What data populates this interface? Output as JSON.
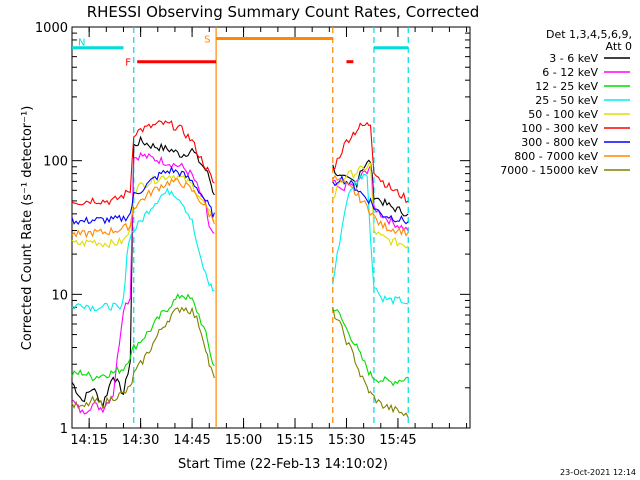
{
  "chart_data": {
    "type": "line",
    "title": "RHESSI Observing Summary Count Rates, Corrected",
    "xlabel": "Start Time (22-Feb-13 14:10:02)",
    "ylabel": "Corrected Count Rate (s⁻¹ detector⁻¹)",
    "x_range_min": [
      10,
      126
    ],
    "y_range": [
      1,
      1000
    ],
    "y_scale": "log",
    "x_ticks": [
      {
        "min": 15,
        "label": "14:15"
      },
      {
        "min": 30,
        "label": "14:30"
      },
      {
        "min": 45,
        "label": "14:45"
      },
      {
        "min": 60,
        "label": "15:00"
      },
      {
        "min": 75,
        "label": "15:15"
      },
      {
        "min": 90,
        "label": "15:30"
      },
      {
        "min": 105,
        "label": "15:45"
      }
    ],
    "y_ticks": [
      {
        "value": 1,
        "label": "1"
      },
      {
        "value": 10,
        "label": "10"
      },
      {
        "value": 100,
        "label": "100"
      },
      {
        "value": 1000,
        "label": "1000"
      }
    ],
    "legend_header": [
      "Det 1,3,4,5,6,9,",
      "Att 0"
    ],
    "legend_placement": "right",
    "timestamp": "23-Oct-2021 12:14",
    "gaps": [
      [
        52,
        86
      ]
    ],
    "series": [
      {
        "name": "3 - 6 keV",
        "color": "#000000",
        "points": [
          [
            10,
            2.2
          ],
          [
            13,
            1.6
          ],
          [
            16,
            2.0
          ],
          [
            19,
            1.5
          ],
          [
            22,
            2.5
          ],
          [
            25,
            1.8
          ],
          [
            27,
            3.2
          ],
          [
            28,
            130
          ],
          [
            30,
            140
          ],
          [
            33,
            130
          ],
          [
            36,
            125
          ],
          [
            39,
            120
          ],
          [
            42,
            110
          ],
          [
            45,
            120
          ],
          [
            47,
            100
          ],
          [
            49,
            85
          ],
          [
            50,
            75
          ],
          [
            51,
            60
          ],
          [
            52,
            55
          ],
          [
            86,
            90
          ],
          [
            88,
            75
          ],
          [
            90,
            72
          ],
          [
            92,
            70
          ],
          [
            93,
            68
          ],
          [
            94,
            85
          ],
          [
            96,
            95
          ],
          [
            97,
            100
          ],
          [
            98,
            55
          ],
          [
            100,
            50
          ],
          [
            103,
            45
          ],
          [
            106,
            42
          ],
          [
            108,
            40
          ]
        ]
      },
      {
        "name": "6 - 12 keV",
        "color": "#ff00ff",
        "points": [
          [
            10,
            1.6
          ],
          [
            13,
            1.3
          ],
          [
            16,
            1.5
          ],
          [
            19,
            1.4
          ],
          [
            22,
            1.8
          ],
          [
            25,
            8.0
          ],
          [
            27,
            9.5
          ],
          [
            28,
            105
          ],
          [
            30,
            110
          ],
          [
            33,
            105
          ],
          [
            36,
            100
          ],
          [
            39,
            95
          ],
          [
            42,
            90
          ],
          [
            45,
            78
          ],
          [
            47,
            60
          ],
          [
            49,
            45
          ],
          [
            50,
            32
          ],
          [
            51,
            28
          ],
          [
            52,
            26
          ],
          [
            86,
            70
          ],
          [
            88,
            60
          ],
          [
            90,
            65
          ],
          [
            92,
            66
          ],
          [
            93,
            68
          ],
          [
            94,
            75
          ],
          [
            96,
            85
          ],
          [
            97,
            92
          ],
          [
            98,
            45
          ],
          [
            100,
            40
          ],
          [
            103,
            35
          ],
          [
            106,
            32
          ],
          [
            108,
            30
          ]
        ]
      },
      {
        "name": "12 - 25 keV",
        "color": "#00dd00",
        "points": [
          [
            10,
            2.5
          ],
          [
            13,
            2.6
          ],
          [
            16,
            2.4
          ],
          [
            19,
            2.5
          ],
          [
            22,
            2.6
          ],
          [
            25,
            2.8
          ],
          [
            27,
            3.5
          ],
          [
            28,
            4.0
          ],
          [
            30,
            4.5
          ],
          [
            33,
            5.5
          ],
          [
            36,
            7.0
          ],
          [
            39,
            8.5
          ],
          [
            42,
            10
          ],
          [
            45,
            9.0
          ],
          [
            47,
            7.0
          ],
          [
            49,
            5.0
          ],
          [
            50,
            4.0
          ],
          [
            51,
            3.0
          ],
          [
            52,
            2.8
          ],
          [
            86,
            8.0
          ],
          [
            88,
            7.0
          ],
          [
            90,
            5.5
          ],
          [
            92,
            4.5
          ],
          [
            93,
            4.0
          ],
          [
            94,
            3.5
          ],
          [
            96,
            2.8
          ],
          [
            97,
            2.5
          ],
          [
            98,
            2.4
          ],
          [
            100,
            2.3
          ],
          [
            103,
            2.2
          ],
          [
            106,
            2.3
          ],
          [
            108,
            2.4
          ]
        ]
      },
      {
        "name": "25 - 50 keV",
        "color": "#00eeee",
        "points": [
          [
            10,
            8.0
          ],
          [
            13,
            8.5
          ],
          [
            16,
            8.0
          ],
          [
            19,
            8.0
          ],
          [
            22,
            8.2
          ],
          [
            24,
            7.5
          ],
          [
            25,
            9.0
          ],
          [
            26,
            20
          ],
          [
            27,
            28
          ],
          [
            28,
            30
          ],
          [
            30,
            35
          ],
          [
            33,
            45
          ],
          [
            36,
            55
          ],
          [
            39,
            60
          ],
          [
            42,
            50
          ],
          [
            45,
            35
          ],
          [
            47,
            20
          ],
          [
            49,
            14
          ],
          [
            50,
            12
          ],
          [
            51,
            11
          ],
          [
            52,
            10
          ],
          [
            86,
            12
          ],
          [
            88,
            25
          ],
          [
            90,
            50
          ],
          [
            92,
            65
          ],
          [
            93,
            70
          ],
          [
            94,
            75
          ],
          [
            95,
            80
          ],
          [
            96,
            82
          ],
          [
            97,
            25
          ],
          [
            98,
            12
          ],
          [
            100,
            9.5
          ],
          [
            103,
            9.0
          ],
          [
            106,
            9.0
          ],
          [
            108,
            8.5
          ]
        ]
      },
      {
        "name": "50 - 100 keV",
        "color": "#dddd00",
        "points": [
          [
            10,
            24
          ],
          [
            13,
            24
          ],
          [
            16,
            25
          ],
          [
            19,
            24
          ],
          [
            22,
            24
          ],
          [
            25,
            25
          ],
          [
            27,
            30
          ],
          [
            28,
            60
          ],
          [
            30,
            65
          ],
          [
            33,
            70
          ],
          [
            36,
            75
          ],
          [
            39,
            78
          ],
          [
            42,
            74
          ],
          [
            45,
            66
          ],
          [
            47,
            55
          ],
          [
            49,
            45
          ],
          [
            50,
            40
          ],
          [
            51,
            38
          ],
          [
            52,
            36
          ],
          [
            86,
            50
          ],
          [
            88,
            70
          ],
          [
            90,
            78
          ],
          [
            92,
            80
          ],
          [
            93,
            82
          ],
          [
            94,
            85
          ],
          [
            96,
            90
          ],
          [
            97,
            95
          ],
          [
            98,
            30
          ],
          [
            100,
            27
          ],
          [
            103,
            25
          ],
          [
            106,
            24
          ],
          [
            108,
            23
          ]
        ]
      },
      {
        "name": "100 - 300 keV",
        "color": "#ff0000",
        "points": [
          [
            10,
            50
          ],
          [
            13,
            49
          ],
          [
            16,
            51
          ],
          [
            19,
            50
          ],
          [
            22,
            50
          ],
          [
            25,
            55
          ],
          [
            27,
            60
          ],
          [
            28,
            160
          ],
          [
            30,
            170
          ],
          [
            33,
            180
          ],
          [
            36,
            190
          ],
          [
            39,
            185
          ],
          [
            42,
            170
          ],
          [
            45,
            140
          ],
          [
            47,
            110
          ],
          [
            49,
            90
          ],
          [
            50,
            80
          ],
          [
            51,
            70
          ],
          [
            52,
            65
          ],
          [
            86,
            85
          ],
          [
            88,
            110
          ],
          [
            90,
            140
          ],
          [
            92,
            160
          ],
          [
            93,
            170
          ],
          [
            94,
            180
          ],
          [
            96,
            185
          ],
          [
            97,
            190
          ],
          [
            98,
            85
          ],
          [
            100,
            72
          ],
          [
            103,
            62
          ],
          [
            106,
            55
          ],
          [
            108,
            50
          ]
        ]
      },
      {
        "name": "300 - 800 keV",
        "color": "#0000ff",
        "points": [
          [
            10,
            36
          ],
          [
            13,
            35
          ],
          [
            16,
            36
          ],
          [
            19,
            36
          ],
          [
            22,
            36
          ],
          [
            25,
            37
          ],
          [
            27,
            40
          ],
          [
            28,
            55
          ],
          [
            30,
            60
          ],
          [
            33,
            70
          ],
          [
            36,
            80
          ],
          [
            39,
            85
          ],
          [
            42,
            80
          ],
          [
            45,
            70
          ],
          [
            47,
            60
          ],
          [
            49,
            50
          ],
          [
            50,
            45
          ],
          [
            51,
            40
          ],
          [
            52,
            38
          ],
          [
            86,
            65
          ],
          [
            88,
            75
          ],
          [
            90,
            70
          ],
          [
            92,
            65
          ],
          [
            93,
            62
          ],
          [
            94,
            58
          ],
          [
            96,
            52
          ],
          [
            97,
            50
          ],
          [
            98,
            45
          ],
          [
            100,
            40
          ],
          [
            103,
            38
          ],
          [
            106,
            36
          ],
          [
            108,
            35
          ]
        ]
      },
      {
        "name": "800 - 7000 keV",
        "color": "#ff8800",
        "points": [
          [
            10,
            28
          ],
          [
            13,
            28
          ],
          [
            16,
            29
          ],
          [
            19,
            29
          ],
          [
            22,
            30
          ],
          [
            25,
            31
          ],
          [
            27,
            33
          ],
          [
            28,
            45
          ],
          [
            30,
            50
          ],
          [
            33,
            58
          ],
          [
            36,
            65
          ],
          [
            39,
            70
          ],
          [
            42,
            68
          ],
          [
            45,
            60
          ],
          [
            47,
            52
          ],
          [
            49,
            45
          ],
          [
            50,
            40
          ],
          [
            51,
            37
          ],
          [
            52,
            35
          ],
          [
            86,
            75
          ],
          [
            88,
            70
          ],
          [
            90,
            65
          ],
          [
            92,
            60
          ],
          [
            93,
            55
          ],
          [
            94,
            52
          ],
          [
            96,
            45
          ],
          [
            97,
            42
          ],
          [
            98,
            38
          ],
          [
            100,
            33
          ],
          [
            103,
            31
          ],
          [
            106,
            30
          ],
          [
            108,
            29
          ]
        ]
      },
      {
        "name": "7000 - 15000 keV",
        "color": "#808000",
        "points": [
          [
            10,
            1.5
          ],
          [
            13,
            1.4
          ],
          [
            16,
            1.6
          ],
          [
            19,
            1.5
          ],
          [
            22,
            1.7
          ],
          [
            25,
            1.8
          ],
          [
            27,
            2.0
          ],
          [
            28,
            2.5
          ],
          [
            30,
            3.0
          ],
          [
            33,
            4.0
          ],
          [
            36,
            5.5
          ],
          [
            39,
            7.0
          ],
          [
            42,
            8.0
          ],
          [
            45,
            7.5
          ],
          [
            47,
            6.0
          ],
          [
            49,
            4.0
          ],
          [
            50,
            3.0
          ],
          [
            51,
            2.5
          ],
          [
            52,
            2.2
          ],
          [
            86,
            7.5
          ],
          [
            88,
            6.0
          ],
          [
            90,
            4.5
          ],
          [
            92,
            3.5
          ],
          [
            93,
            3.0
          ],
          [
            94,
            2.5
          ],
          [
            96,
            2.0
          ],
          [
            97,
            1.8
          ],
          [
            98,
            1.7
          ],
          [
            100,
            1.5
          ],
          [
            103,
            1.4
          ],
          [
            106,
            1.3
          ],
          [
            108,
            1.2
          ]
        ]
      }
    ],
    "flags": [
      {
        "label": "N",
        "color": "#00dddd",
        "segments": [
          [
            10,
            25
          ],
          [
            98,
            108
          ]
        ],
        "y_value": 700
      },
      {
        "label": "F",
        "color": "#ff0000",
        "segments": [
          [
            29,
            52
          ],
          [
            90,
            92
          ]
        ],
        "y_value": 550
      },
      {
        "label": "S",
        "color": "#ff8800",
        "segments": [
          [
            52,
            86
          ]
        ],
        "y_value": 820
      }
    ],
    "vlines": [
      {
        "x": 28,
        "color": "#00dddd",
        "dash": true
      },
      {
        "x": 52,
        "color": "#ff8800",
        "dash": false
      },
      {
        "x": 86,
        "color": "#ff8800",
        "dash": true
      },
      {
        "x": 98,
        "color": "#00dddd",
        "dash": true
      },
      {
        "x": 108,
        "color": "#00dddd",
        "dash": true
      }
    ]
  }
}
